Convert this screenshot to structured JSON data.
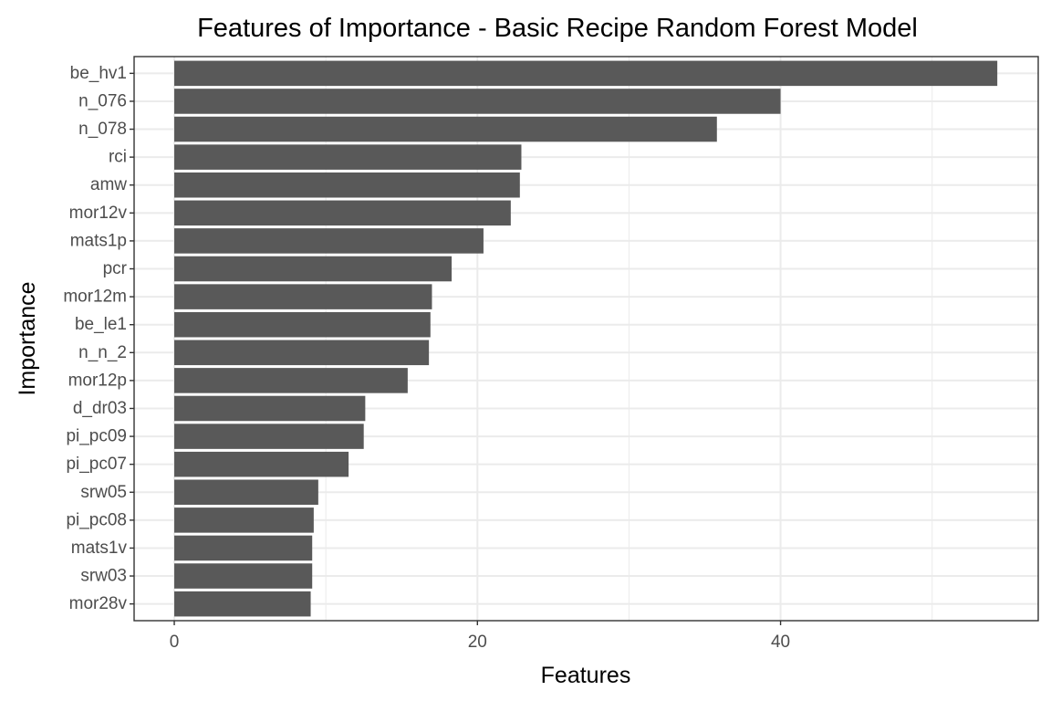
{
  "chart_data": {
    "type": "bar",
    "orientation": "horizontal",
    "title": "Features of Importance - Basic Recipe Random Forest Model",
    "xlabel": "Features",
    "ylabel": "Importance",
    "categories": [
      "be_hv1",
      "n_076",
      "n_078",
      "rci",
      "amw",
      "mor12v",
      "mats1p",
      "pcr",
      "mor12m",
      "be_le1",
      "n_n_2",
      "mor12p",
      "d_dr03",
      "pi_pc09",
      "pi_pc07",
      "srw05",
      "pi_pc08",
      "mats1v",
      "srw03",
      "mor28v"
    ],
    "values": [
      54.3,
      40.0,
      35.8,
      22.9,
      22.8,
      22.2,
      20.4,
      18.3,
      17.0,
      16.9,
      16.8,
      15.4,
      12.6,
      12.5,
      11.5,
      9.5,
      9.2,
      9.1,
      9.1,
      9.0
    ],
    "xlim": [
      -2.65,
      57.0
    ],
    "xticks": [
      0,
      20,
      40
    ],
    "xtick_labels": [
      "0",
      "20",
      "40"
    ],
    "grid": true,
    "legend": "none",
    "colors": {
      "bar": "#595959",
      "grid_major": "#ebebeb",
      "grid_minor": "#ebebeb",
      "panel_border": "#333333",
      "tick_label": "#4d4d4d",
      "background": "#ffffff"
    }
  }
}
